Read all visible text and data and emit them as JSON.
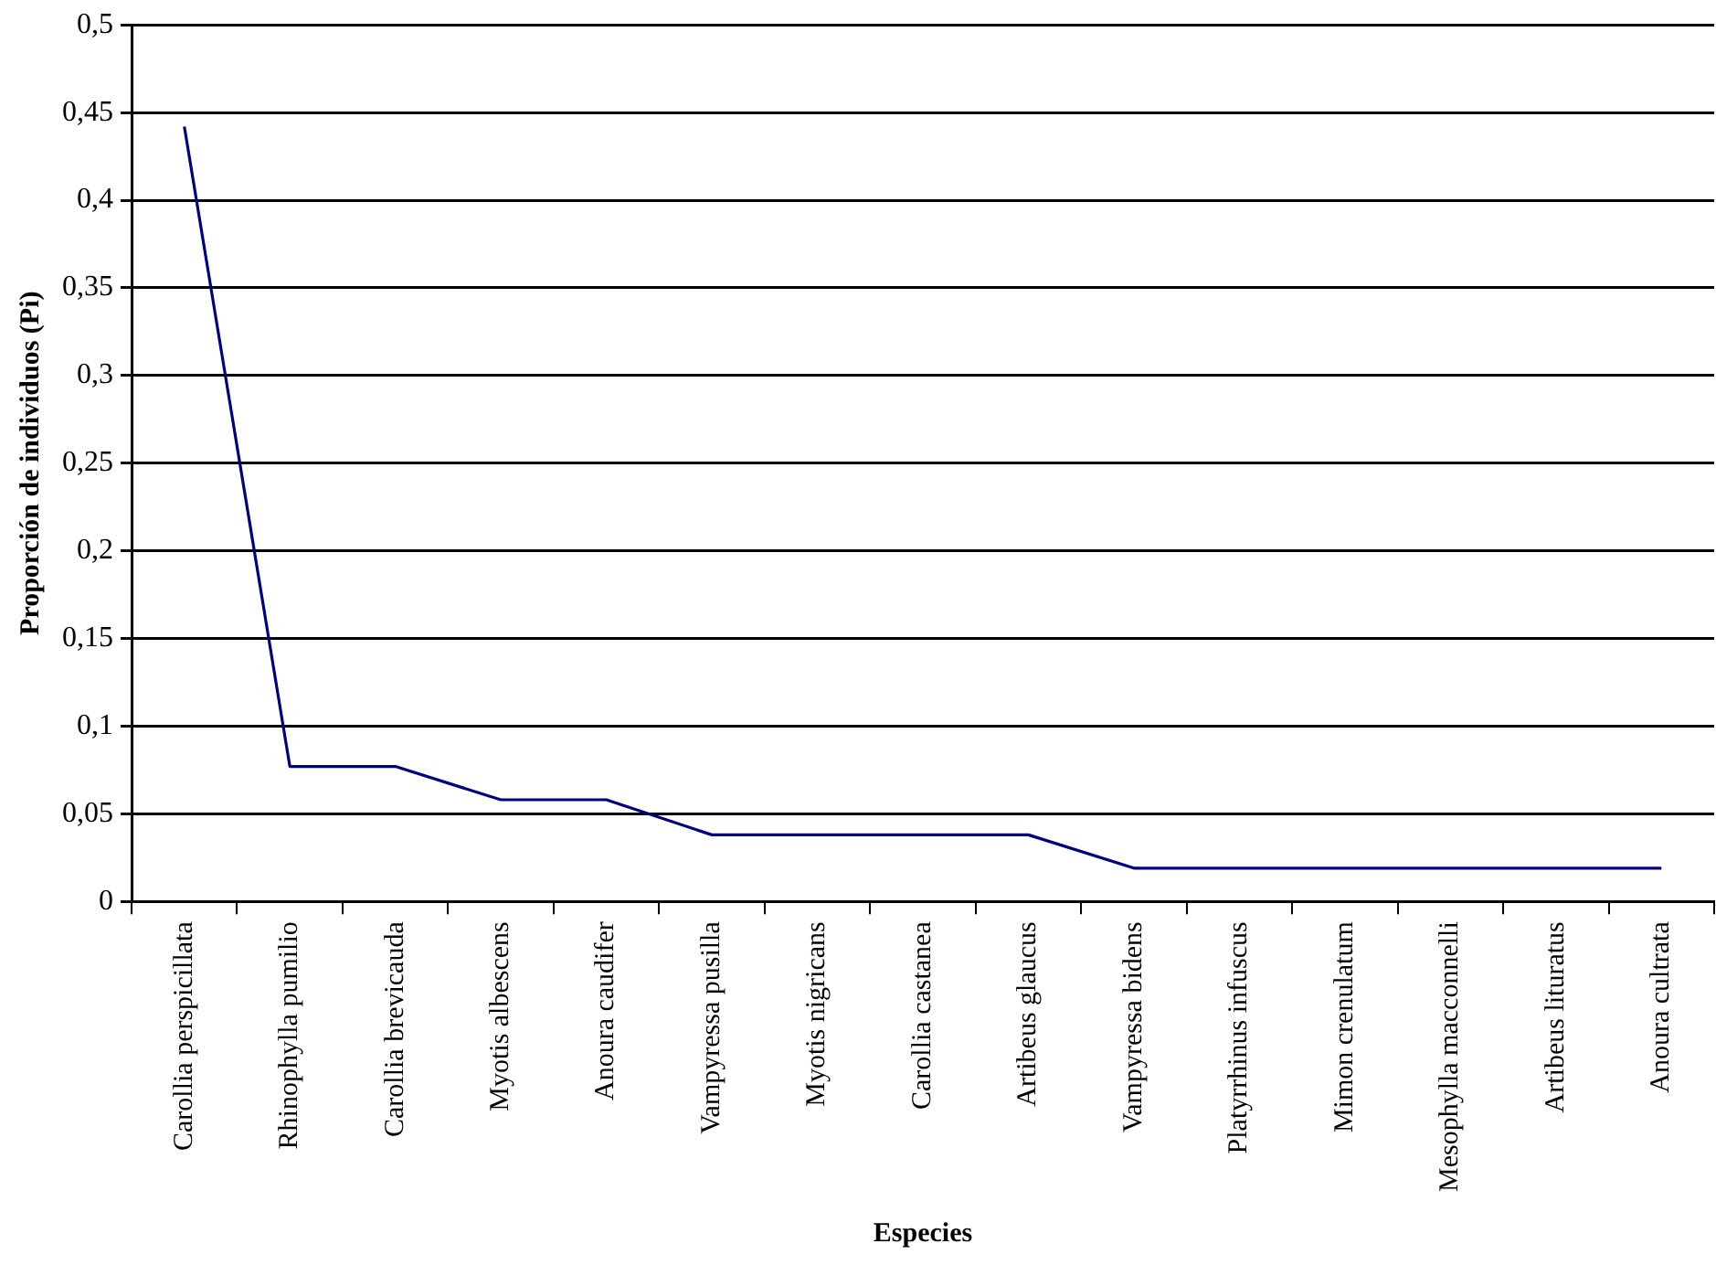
{
  "chart_data": {
    "type": "line",
    "xlabel": "Especies",
    "ylabel": "Proporción de individuos (Pi)",
    "categories": [
      "Carollia perspicillata",
      "Rhinophylla pumilio",
      "Carollia brevicauda",
      "Myotis albescens",
      "Anoura caudifer",
      "Vampyressa pusilla",
      "Myotis nigricans",
      "Carollia castanea",
      "Artibeus glaucus",
      "Vampyressa bidens",
      "Platyrrhinus infuscus",
      "Mimon crenulatum",
      "Mesophylla macconnelli",
      "Artibeus lituratus",
      "Anoura cultrata"
    ],
    "series": [
      {
        "color": "#000080",
        "values": [
          0.442,
          0.077,
          0.077,
          0.058,
          0.058,
          0.038,
          0.038,
          0.038,
          0.038,
          0.019,
          0.019,
          0.019,
          0.019,
          0.019,
          0.019
        ]
      }
    ],
    "ylim": [
      0,
      0.5
    ],
    "yticks": [
      {
        "value": 0,
        "label": "0"
      },
      {
        "value": 0.05,
        "label": "0,05"
      },
      {
        "value": 0.1,
        "label": "0,1"
      },
      {
        "value": 0.15,
        "label": "0,15"
      },
      {
        "value": 0.2,
        "label": "0,2"
      },
      {
        "value": 0.25,
        "label": "0,25"
      },
      {
        "value": 0.3,
        "label": "0,3"
      },
      {
        "value": 0.35,
        "label": "0,35"
      },
      {
        "value": 0.4,
        "label": "0,4"
      },
      {
        "value": 0.45,
        "label": "0,45"
      },
      {
        "value": 0.5,
        "label": "0,5"
      }
    ],
    "grid": "y",
    "legend": false,
    "marker": "none",
    "line_style": "solid"
  }
}
